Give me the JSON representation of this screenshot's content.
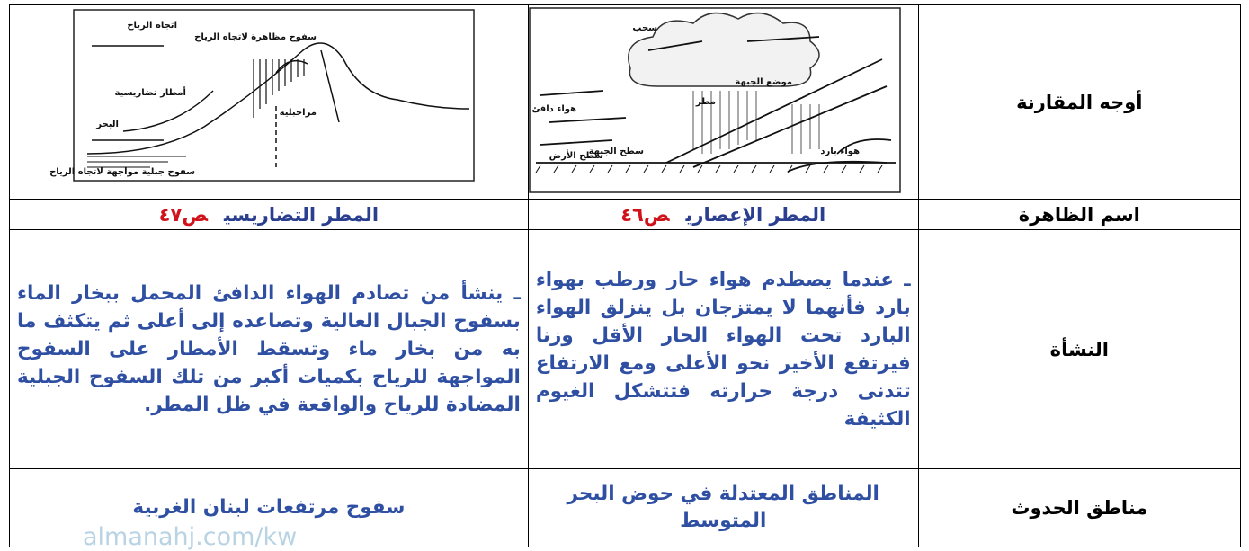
{
  "table": {
    "rows": [
      {
        "header": "أوجه المقارنة"
      },
      {
        "header": "اسم الظاهرة",
        "frontal": {
          "name": "المطر الإعصاري",
          "page": "ص٤٦"
        },
        "orographic": {
          "name": "المطر التضاريسي",
          "page": "ص٤٧"
        }
      },
      {
        "header": "النشأة",
        "frontal": "ـ عندما يصطدم هواء حار ورطب بهواء بارد فأنهما لا يمتزجان بل ينزلق الهواء البارد تحت الهواء الحار الأقل وزنا فيرتفع الأخير نحو الأعلى ومع الارتفاع تتدنى درجة حرارته فتتشكل الغيوم الكثيفة",
        "orographic": "ـ ينشأ من تصادم الهواء الدافئ المحمل ببخار الماء بسفوح الجبال العالية وتصاعده إلى أعلى ثم يتكثف ما به من بخار ماء وتسقط الأمطار على السفوح المواجهة للرياح بكميات أكبر من تلك السفوح الجبلية المضادة للرياح والواقعة في ظل المطر."
      },
      {
        "header": "مناطق الحدوث",
        "frontal": "المناطق المعتدلة في حوض البحر المتوسط",
        "orographic": "سفوح مرتفعات لبنان الغربية"
      }
    ]
  },
  "diagrams": {
    "frontal": {
      "labels": [
        "سحب",
        "هواء دافئ",
        "هواء بارد",
        "مطر",
        "سطح الجبهة",
        "سطح الأرض",
        "موضع الجبهة"
      ]
    },
    "orographic": {
      "labels": [
        "اتجاه الرياح",
        "سفوح مظاهرة لاتجاه الرياح",
        "أمطار تضاريسية",
        "مراجبلية",
        "البحر",
        "سفوح جبلية مواجهة لاتجاه الرياح"
      ]
    }
  },
  "watermark": "almanahj.com/kw"
}
